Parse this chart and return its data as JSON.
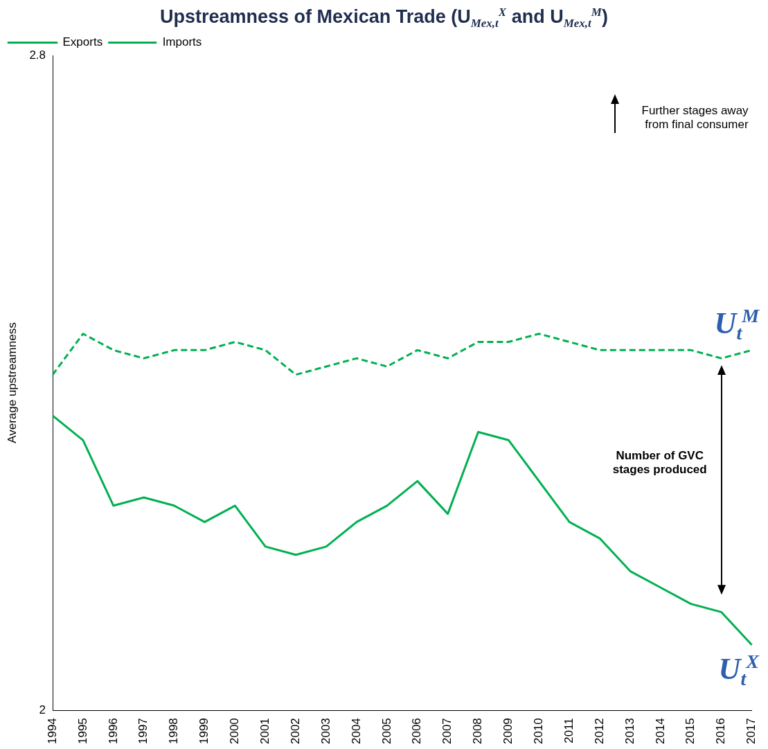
{
  "chart_data": {
    "type": "line",
    "title": "Upstreamness of Mexican Trade (U$_{Mex,t}$$^{X}$ and U$_{Mex,t}$$^{M}$)",
    "ylabel": "Average upstreamness",
    "categories": [
      "1994",
      "1995",
      "1996",
      "1997",
      "1998",
      "1999",
      "2000",
      "2001",
      "2002",
      "2003",
      "2004",
      "2005",
      "2006",
      "2007",
      "2008",
      "2009",
      "2010",
      "2011",
      "2012",
      "2013",
      "2014",
      "2015",
      "2016",
      "2017"
    ],
    "series": [
      {
        "name": "Exports",
        "color": "#00b050",
        "line_style": "solid",
        "values": [
          2.36,
          2.33,
          2.25,
          2.26,
          2.25,
          2.23,
          2.25,
          2.2,
          2.19,
          2.2,
          2.23,
          2.25,
          2.28,
          2.24,
          2.34,
          2.33,
          2.28,
          2.23,
          2.21,
          2.17,
          2.15,
          2.13,
          2.12,
          2.08
        ]
      },
      {
        "name": "Imports",
        "color": "#00b050",
        "line_style": "dashed",
        "values": [
          2.41,
          2.46,
          2.44,
          2.43,
          2.44,
          2.44,
          2.45,
          2.44,
          2.41,
          2.42,
          2.43,
          2.42,
          2.44,
          2.43,
          2.45,
          2.45,
          2.46,
          2.45,
          2.44,
          2.44,
          2.44,
          2.44,
          2.43,
          2.44
        ]
      }
    ],
    "ylim": [
      2,
      2.8
    ],
    "yticks": [
      2,
      2.8
    ],
    "grid": false,
    "legend": "top left",
    "marker": "none",
    "annotations": [
      {
        "text": "U$_{t}$$^{M}$",
        "x": "2017",
        "y": 2.44
      },
      {
        "text": "U$_{t}$$^{X}$",
        "x": "2017",
        "y": 2.08
      },
      "Number of GVC stages produced",
      "Further stages away from final consumer"
    ]
  }
}
